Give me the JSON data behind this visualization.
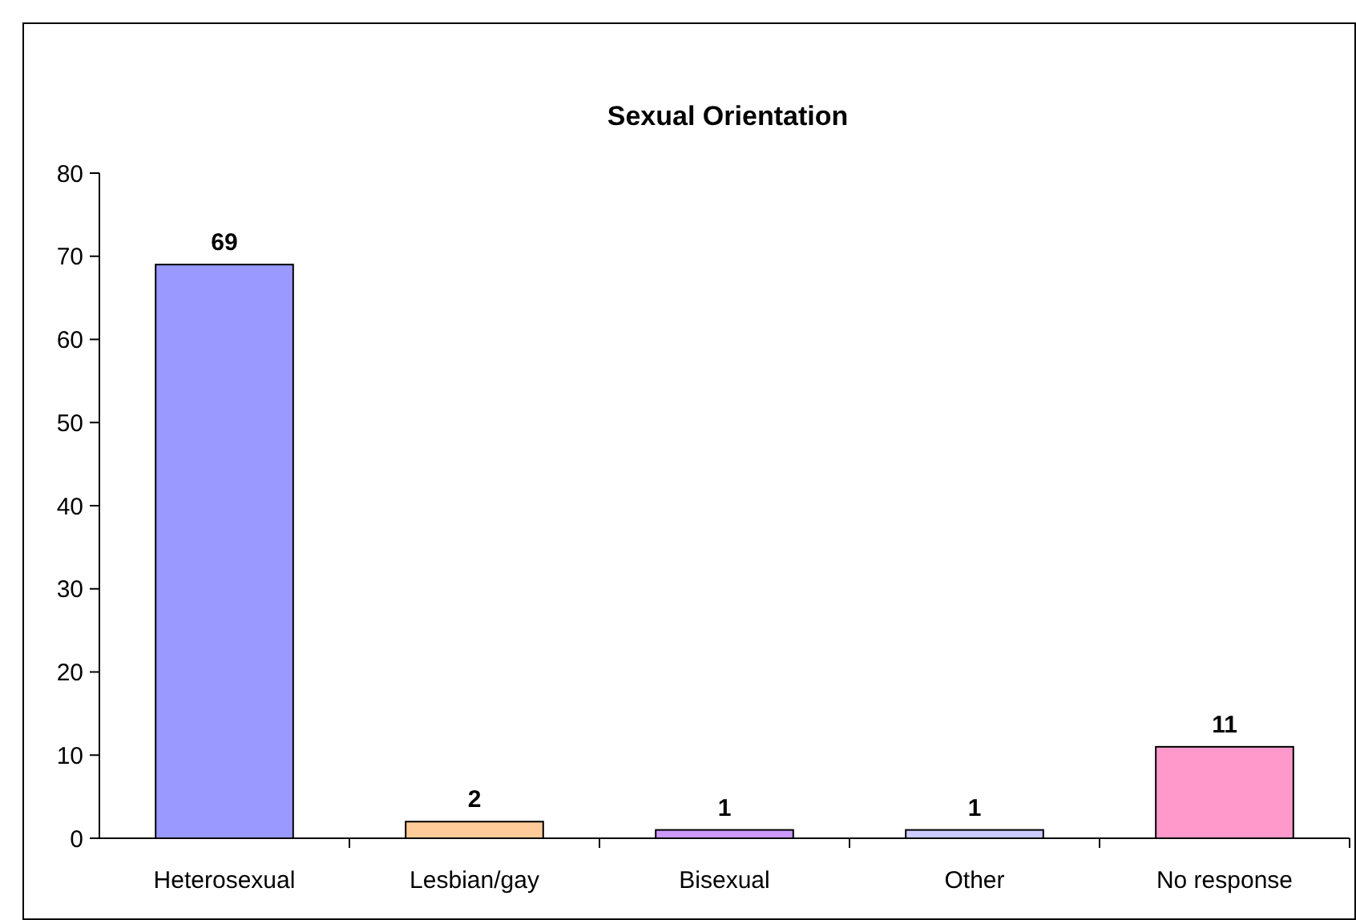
{
  "chart_data": {
    "type": "bar",
    "title": "Sexual Orientation",
    "categories": [
      "Heterosexual",
      "Lesbian/gay",
      "Bisexual",
      "Other",
      "No response"
    ],
    "values": [
      69,
      2,
      1,
      1,
      11
    ],
    "colors": [
      "#9999ff",
      "#ffcc99",
      "#cc99ff",
      "#ccccff",
      "#ff99cc"
    ],
    "ylim": [
      0,
      80
    ],
    "yticks": [
      0,
      10,
      20,
      30,
      40,
      50,
      60,
      70,
      80
    ],
    "grid": false,
    "data_labels": true
  }
}
